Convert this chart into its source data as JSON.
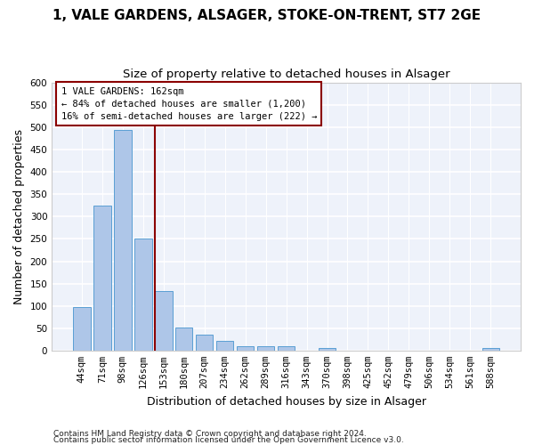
{
  "title1": "1, VALE GARDENS, ALSAGER, STOKE-ON-TRENT, ST7 2GE",
  "title2": "Size of property relative to detached houses in Alsager",
  "xlabel": "Distribution of detached houses by size in Alsager",
  "ylabel": "Number of detached properties",
  "bar_color": "#aec6e8",
  "bar_edge_color": "#5a9fd4",
  "categories": [
    "44sqm",
    "71sqm",
    "98sqm",
    "126sqm",
    "153sqm",
    "180sqm",
    "207sqm",
    "234sqm",
    "262sqm",
    "289sqm",
    "316sqm",
    "343sqm",
    "370sqm",
    "398sqm",
    "425sqm",
    "452sqm",
    "479sqm",
    "506sqm",
    "534sqm",
    "561sqm",
    "588sqm"
  ],
  "values": [
    97,
    325,
    495,
    250,
    133,
    51,
    35,
    22,
    10,
    10,
    10,
    0,
    5,
    0,
    0,
    0,
    0,
    0,
    0,
    0,
    5
  ],
  "ylim": [
    0,
    600
  ],
  "yticks": [
    0,
    50,
    100,
    150,
    200,
    250,
    300,
    350,
    400,
    450,
    500,
    550,
    600
  ],
  "property_label": "1 VALE GARDENS: 162sqm",
  "annotation_line1": "← 84% of detached houses are smaller (1,200)",
  "annotation_line2": "16% of semi-detached houses are larger (222) →",
  "vline_color": "#8b0000",
  "vline_bin_index": 4,
  "footnote1": "Contains HM Land Registry data © Crown copyright and database right 2024.",
  "footnote2": "Contains public sector information licensed under the Open Government Licence v3.0.",
  "bg_color": "#eef2fa",
  "grid_color": "#ffffff",
  "title_fontsize": 11,
  "subtitle_fontsize": 9.5,
  "label_fontsize": 9,
  "tick_fontsize": 7.5,
  "annot_fontsize": 7.5,
  "footnote_fontsize": 6.5
}
